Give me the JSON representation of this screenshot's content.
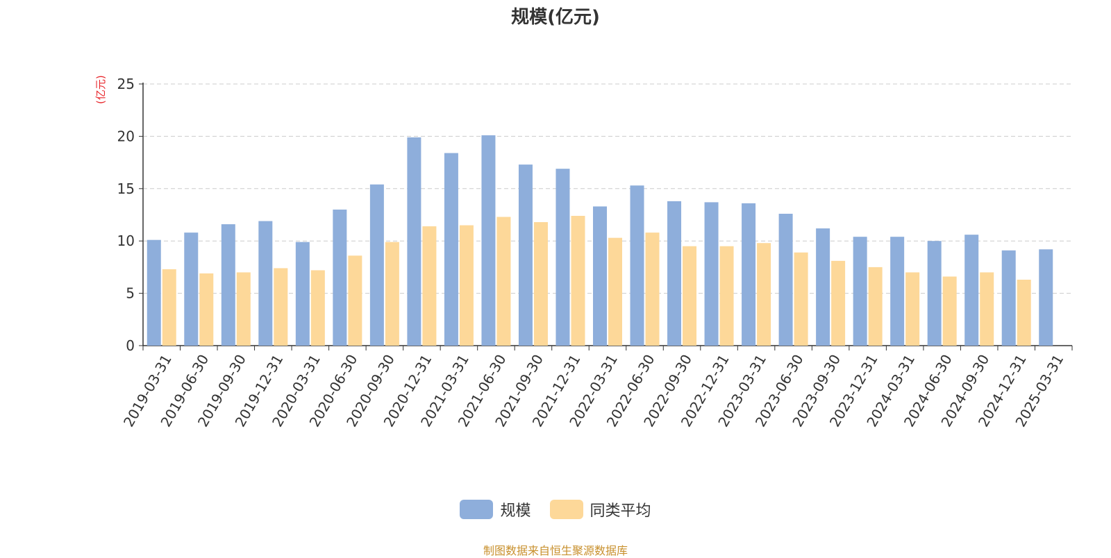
{
  "title": "规模(亿元)",
  "unit_label": "(亿元)",
  "source": "制图数据来自恒生聚源数据库",
  "colors": {
    "series1": "#8eaedb",
    "series2": "#fdd899",
    "grid": "#cccccc",
    "axis": "#333333"
  },
  "chart_data": {
    "type": "bar",
    "title": "规模(亿元)",
    "ylabel": "(亿元)",
    "ylim": [
      0,
      25
    ],
    "yticks": [
      0,
      5,
      10,
      15,
      20,
      25
    ],
    "grid": true,
    "legend_position": "bottom-center",
    "categories": [
      "2019-03-31",
      "2019-06-30",
      "2019-09-30",
      "2019-12-31",
      "2020-03-31",
      "2020-06-30",
      "2020-09-30",
      "2020-12-31",
      "2021-03-31",
      "2021-06-30",
      "2021-09-30",
      "2021-12-31",
      "2022-03-31",
      "2022-06-30",
      "2022-09-30",
      "2022-12-31",
      "2023-03-31",
      "2023-06-30",
      "2023-09-30",
      "2023-12-31",
      "2024-03-31",
      "2024-06-30",
      "2024-09-30",
      "2024-12-31",
      "2025-03-31"
    ],
    "series": [
      {
        "name": "规模",
        "values": [
          10.1,
          10.8,
          11.6,
          11.9,
          9.9,
          13.0,
          15.4,
          19.9,
          18.4,
          20.1,
          17.3,
          16.9,
          13.3,
          15.3,
          13.8,
          13.7,
          13.6,
          12.6,
          11.2,
          10.4,
          10.4,
          10.0,
          10.6,
          9.1,
          9.2
        ]
      },
      {
        "name": "同类平均",
        "values": [
          7.3,
          6.9,
          7.0,
          7.4,
          7.2,
          8.6,
          9.9,
          11.4,
          11.5,
          12.3,
          11.8,
          12.4,
          10.3,
          10.8,
          9.5,
          9.5,
          9.8,
          8.9,
          8.1,
          7.5,
          7.0,
          6.6,
          7.0,
          6.3,
          null
        ]
      }
    ]
  }
}
